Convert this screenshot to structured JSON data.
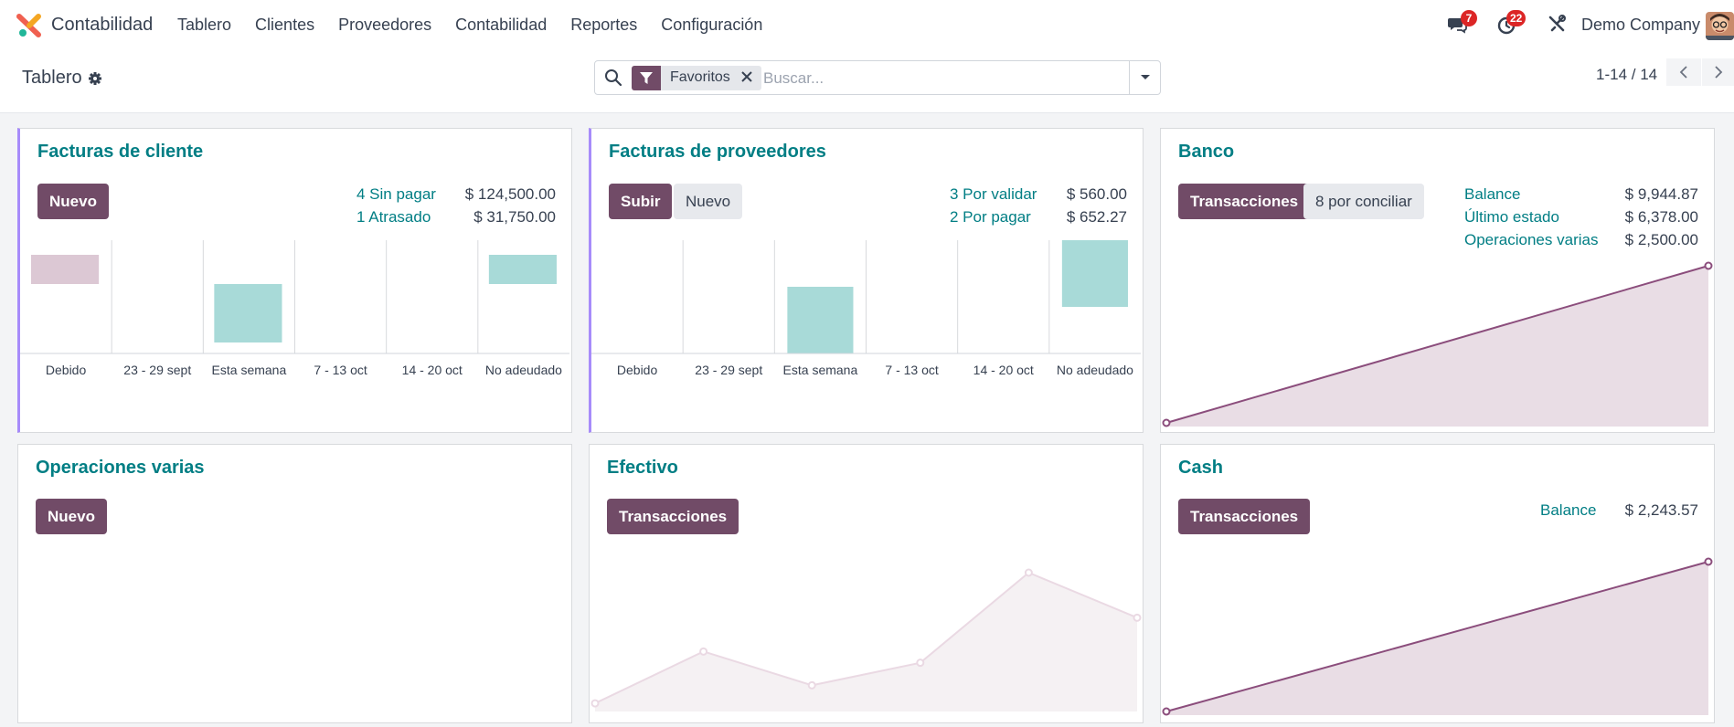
{
  "navbar": {
    "app_name": "Contabilidad",
    "menu": [
      "Tablero",
      "Clientes",
      "Proveedores",
      "Contabilidad",
      "Reportes",
      "Configuración"
    ],
    "messages_badge": "7",
    "activities_badge": "22",
    "company": "Demo Company",
    "icons": [
      "chat-icon",
      "clock-icon",
      "tools-icon"
    ]
  },
  "control": {
    "breadcrumb": "Tablero",
    "search": {
      "facet": "Favoritos",
      "placeholder": "Buscar..."
    },
    "pager": "1-14 / 14"
  },
  "colors": {
    "primary": "#714b67",
    "link": "#017e84",
    "bar_past": "#dcc8d4",
    "bar_future": "#a8dad8",
    "line": "#8b4d7c",
    "area": "#e9dde5"
  },
  "cards": {
    "customer_invoices": {
      "title": "Facturas de cliente",
      "new_label": "Nuevo",
      "stats": [
        {
          "label": "4 Sin pagar",
          "value": "$ 124,500.00"
        },
        {
          "label": "1 Atrasado",
          "value": "$ 31,750.00"
        }
      ],
      "chart_data": {
        "type": "bar",
        "categories": [
          "Debido",
          "23 - 29 sept",
          "Esta semana",
          "7 - 13 oct",
          "14 - 20 oct",
          "No adeudado"
        ],
        "values": [
          -8,
          0,
          40,
          0,
          0,
          -8
        ]
      }
    },
    "vendor_bills": {
      "title": "Facturas de proveedores",
      "upload_label": "Subir",
      "new_label": "Nuevo",
      "stats": [
        {
          "label": "3 Por validar",
          "value": "$ 560.00"
        },
        {
          "label": "2 Por pagar",
          "value": "$ 652.27"
        }
      ],
      "chart_data": {
        "type": "bar",
        "categories": [
          "Debido",
          "23 - 29 sept",
          "Esta semana",
          "7 - 13 oct",
          "14 - 20 oct",
          "No adeudado"
        ],
        "values": [
          0,
          0,
          60,
          0,
          0,
          60
        ]
      }
    },
    "bank": {
      "title": "Banco",
      "transactions_label": "Transacciones",
      "reconcile_label": "8 por conciliar",
      "stats": [
        {
          "label": "Balance",
          "value": "$ 9,944.87"
        },
        {
          "label": "Último estado",
          "value": "$ 6,378.00"
        },
        {
          "label": "Operaciones varias",
          "value": "$ 2,500.00"
        }
      ],
      "chart_data": {
        "type": "area",
        "values": [
          0,
          9944.87
        ]
      }
    },
    "misc": {
      "title": "Operaciones varias",
      "new_label": "Nuevo"
    },
    "cash_journal": {
      "title": "Efectivo",
      "transactions_label": "Transacciones",
      "chart_data": {
        "type": "area",
        "values": [
          2,
          25,
          10,
          20,
          60,
          40
        ]
      }
    },
    "cash": {
      "title": "Cash",
      "transactions_label": "Transacciones",
      "stats": [
        {
          "label": "Balance",
          "value": "$ 2,243.57"
        }
      ],
      "chart_data": {
        "type": "area",
        "values": [
          0,
          2243.57
        ]
      }
    }
  }
}
